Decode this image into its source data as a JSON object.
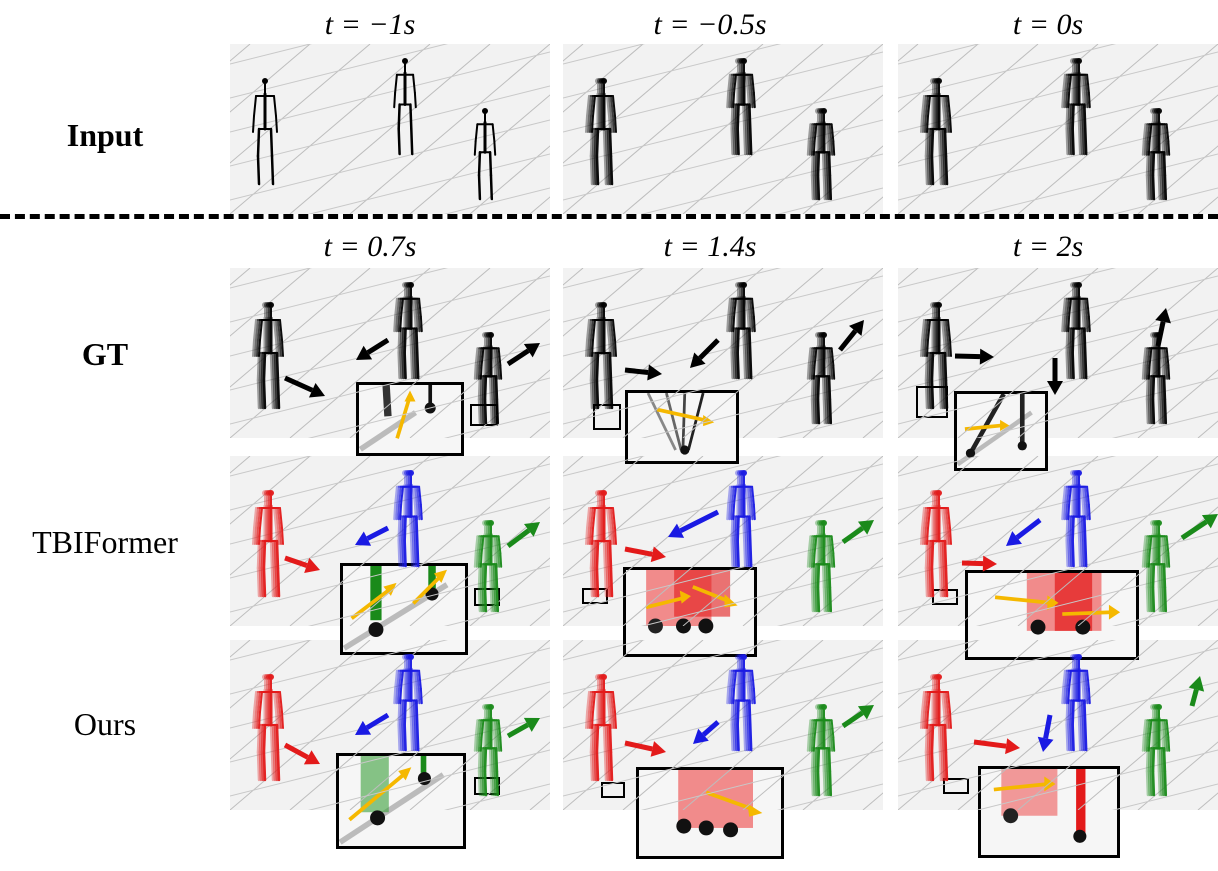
{
  "headers_input": [
    "t = −1s",
    "t = −0.5s",
    "t = 0s"
  ],
  "headers_future": [
    "t = 0.7s",
    "t = 1.4s",
    "t = 2s"
  ],
  "rows": {
    "input": "Input",
    "gt": "GT",
    "tbiformer": "TBIFormer",
    "ours": "Ours"
  },
  "colors": {
    "person_a_pred": "#e31a1a",
    "person_b_pred": "#1a1ae3",
    "person_c_pred": "#1a8a1a",
    "gt_skeleton": "#000000",
    "inset_arrow": "#f5b800",
    "panel_bg": "#f2f2f2"
  }
}
